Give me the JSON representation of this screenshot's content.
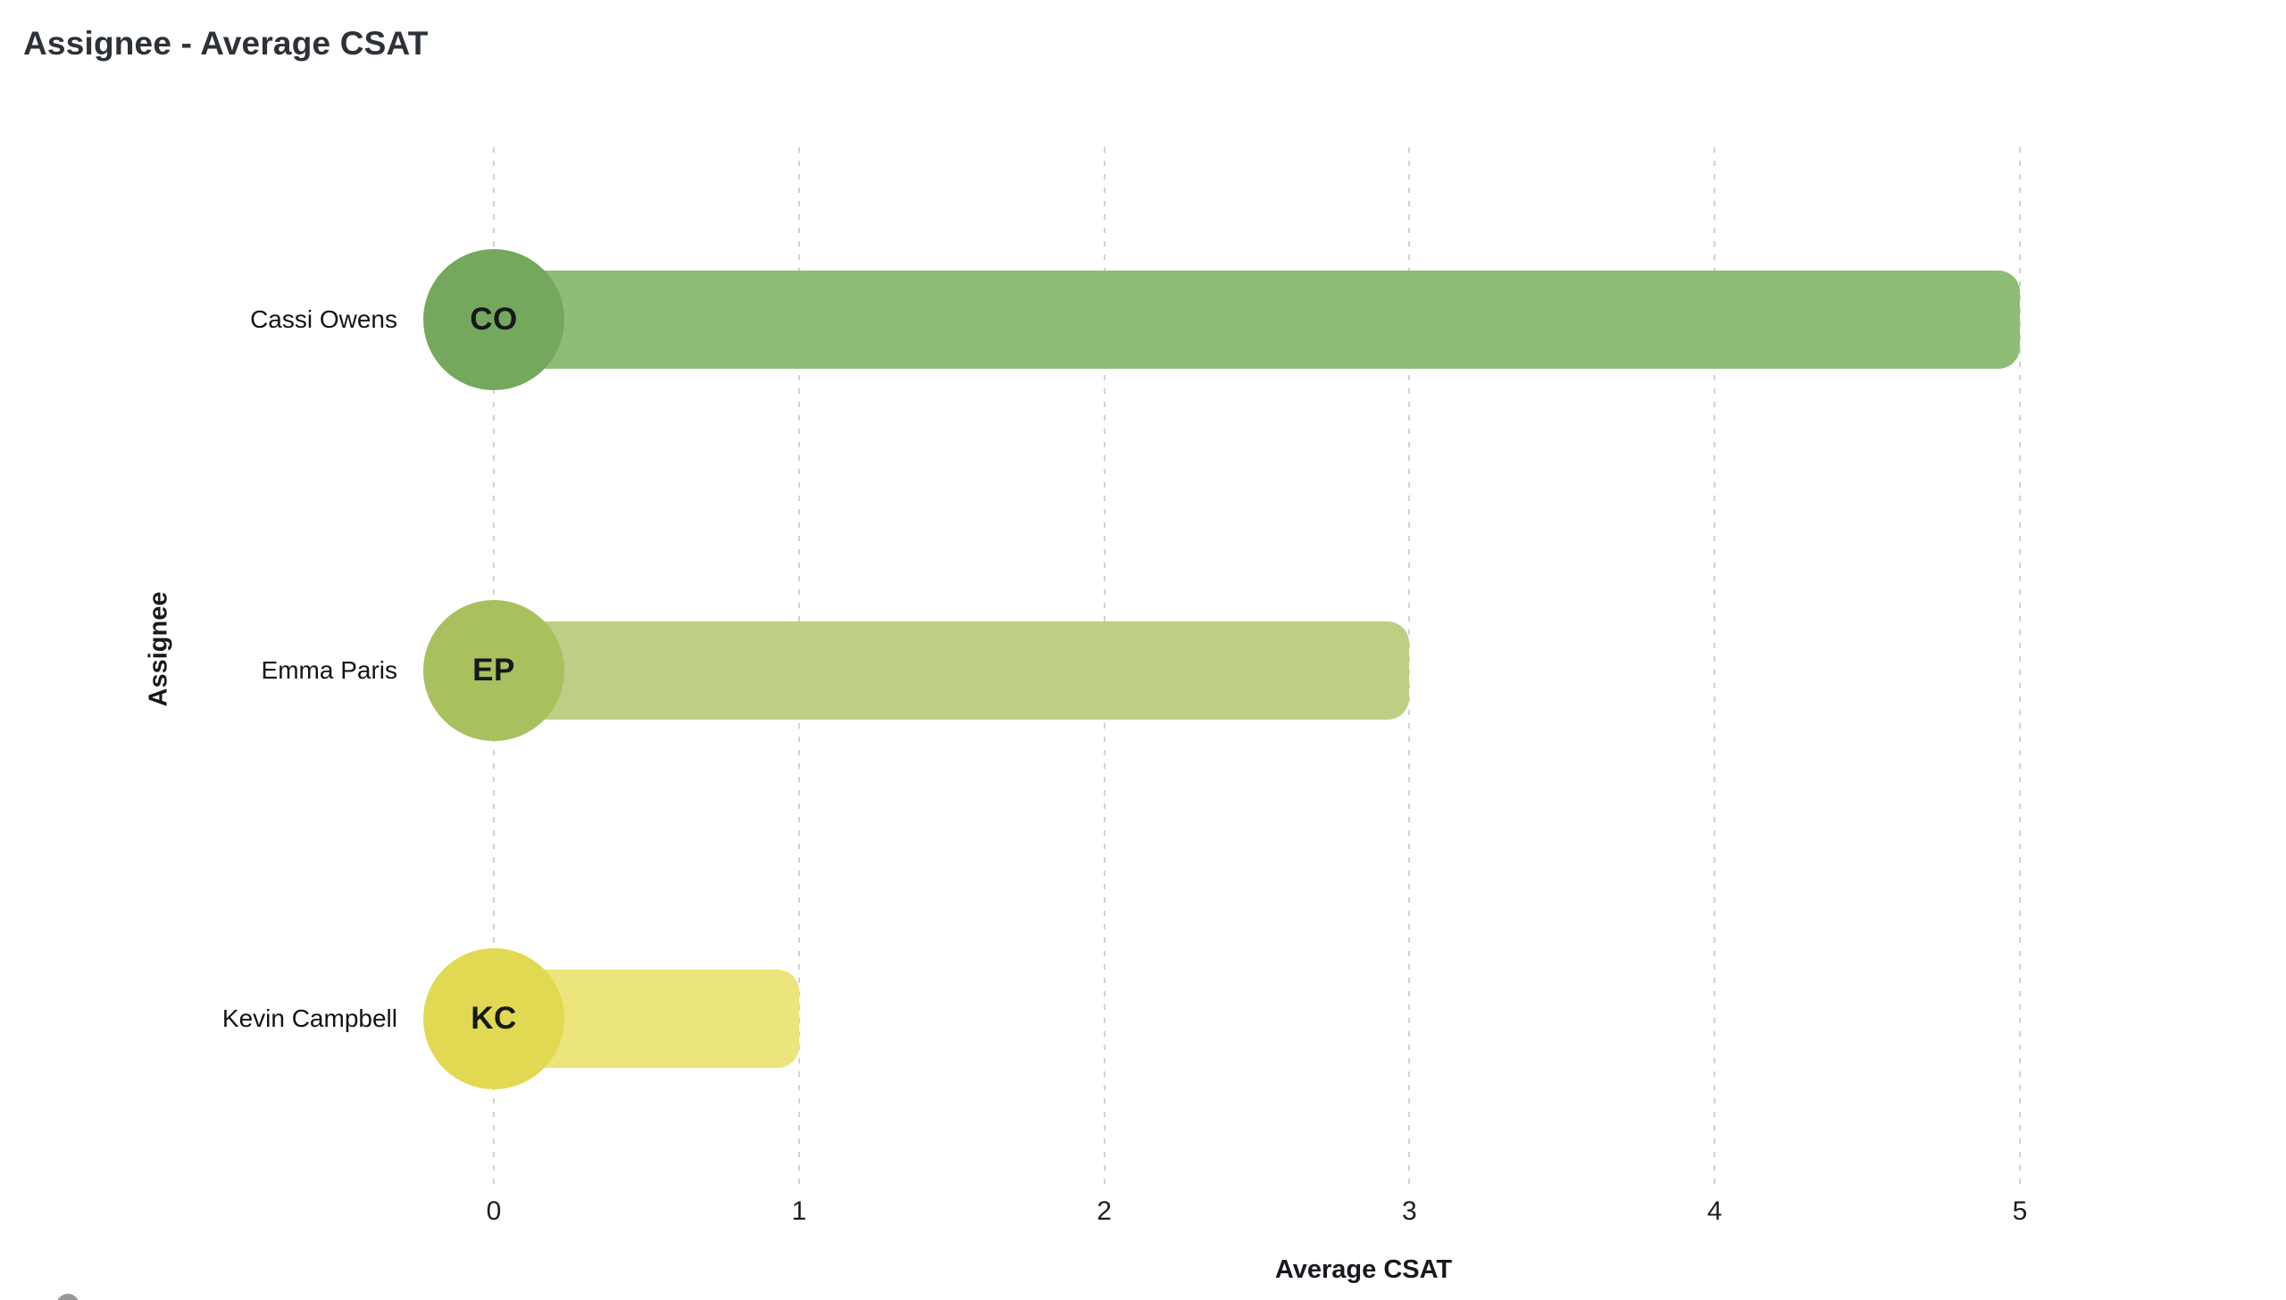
{
  "title": "Assignee - Average CSAT",
  "chart_data": {
    "type": "bar",
    "orientation": "horizontal",
    "title": "Assignee - Average CSAT",
    "xlabel": "Average CSAT",
    "ylabel": "Assignee",
    "categories": [
      "Cassi Owens",
      "Emma Paris",
      "Kevin Campbell"
    ],
    "values": [
      5,
      3,
      1
    ],
    "xlim": [
      0,
      5
    ],
    "xticks": [
      "0",
      "1",
      "2",
      "3",
      "4",
      "5"
    ],
    "grid": "vertical-dashed",
    "legend": "none",
    "bars": [
      {
        "label": "Cassi Owens",
        "initials": "CO",
        "value": 5,
        "avatar_color": "#74a85c",
        "bar_color": "#8fbd78"
      },
      {
        "label": "Emma Paris",
        "initials": "EP",
        "value": 3,
        "avatar_color": "#a8c05e",
        "bar_color": "#bdcf84"
      },
      {
        "label": "Kevin Campbell",
        "initials": "KC",
        "value": 1,
        "avatar_color": "#e2d952",
        "bar_color": "#ece47c"
      }
    ]
  },
  "colors": {
    "background": "#ffffff",
    "title_text": "#2d3138",
    "label_text": "#111418",
    "gridline": "#d2d2d2",
    "help_button": "#979797"
  },
  "icons": {
    "help_button": "help-circle-icon"
  }
}
